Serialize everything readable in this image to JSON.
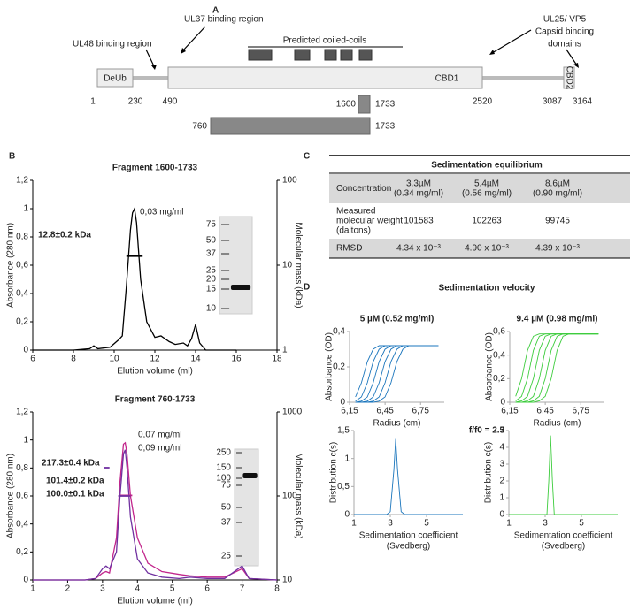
{
  "panel_a": {
    "label": "A",
    "ul48": "UL48 binding region",
    "ul37": "UL37 binding region",
    "coils": "Predicted coiled-coils",
    "ul25": [
      "UL25/ VP5",
      "Capsid binding",
      "domains"
    ],
    "domains": [
      "DeUb",
      "CBD1",
      "CBD2"
    ],
    "positions": [
      1,
      230,
      490,
      2520,
      3087,
      3164
    ],
    "fragments": [
      [
        1600,
        1733
      ],
      [
        760,
        1733
      ]
    ]
  },
  "panel_b": {
    "label": "B"
  },
  "table_c": {
    "label": "C",
    "title": "Sedimentation equilibrium",
    "rows": [
      [
        [
          "Concentration"
        ],
        [
          "3.3µM",
          "(0.34 mg/ml)"
        ],
        [
          "5.4µM",
          "(0.56 mg/ml)"
        ],
        [
          "8.6µM",
          "(0.90 mg/ml)"
        ]
      ],
      [
        [
          "Measured",
          "molecular weight",
          "(daltons)"
        ],
        [
          "101583"
        ],
        [
          "102263"
        ],
        [
          "99745"
        ]
      ],
      [
        [
          "RMSD"
        ],
        [
          "4.34 x 10⁻³"
        ],
        [
          "4.90 x 10⁻³"
        ],
        [
          "4.39 x 10⁻³"
        ]
      ]
    ]
  },
  "panel_d": {
    "label": "D",
    "title": "Sedimentation velocity",
    "subtitle": "f/f0 = 2.3"
  },
  "chart_data": [
    {
      "type": "line",
      "title": "Fragment 1600-1733",
      "x_label": [
        "Elution volume (ml)"
      ],
      "y_label": "Absorbance (280 nm)",
      "y2_label": "Molecular mass (kDa)",
      "xlim": [
        6,
        18
      ],
      "xticks": [
        6,
        8,
        10,
        12,
        14,
        16,
        18
      ],
      "ylim": [
        0,
        1.2
      ],
      "yticks": [
        0,
        {
          "value": 0.2,
          "label": "0,2"
        },
        {
          "value": 0.4,
          "label": "0,4"
        },
        {
          "value": 0.6,
          "label": "0,6"
        },
        {
          "value": 0.8,
          "label": "0,8"
        },
        1,
        {
          "value": 1.2,
          "label": "1,2"
        }
      ],
      "y2lim": [
        1,
        100
      ],
      "y2ticks": [
        1,
        10,
        100
      ],
      "y2_log": true,
      "gel_markers": [
        75,
        50,
        37,
        25,
        20,
        15,
        10
      ],
      "series": [
        {
          "name": "0,03 mg/ml",
          "color": "#000000",
          "x": [
            6,
            8,
            8.8,
            9,
            9.2,
            9.8,
            10.2,
            10.4,
            10.6,
            10.8,
            10.9,
            11,
            11.1,
            11.3,
            11.6,
            12,
            12.3,
            12.7,
            13,
            13.4,
            13.6,
            13.8,
            14,
            14.2,
            14.5,
            16
          ],
          "values": [
            0,
            0,
            0.01,
            0.03,
            0.01,
            0.02,
            0.07,
            0.1,
            0.45,
            0.85,
            0.97,
            1.0,
            0.9,
            0.5,
            0.2,
            0.09,
            0.1,
            0.06,
            0.04,
            0.05,
            0.03,
            0.08,
            0.18,
            0.05,
            0,
            0
          ]
        },
        {
          "name": "12.8±0.2 kDa",
          "color": "#000000",
          "axis": "y2",
          "x": [
            10.6,
            11.4
          ],
          "values": [
            12.8,
            12.8
          ]
        }
      ]
    },
    {
      "type": "line",
      "title": "Fragment 760-1733",
      "x_label": [
        "Elution volume (ml)"
      ],
      "y_label": "Absorbance (280 nm)",
      "y2_label": "Molecular mass (kDa)",
      "xlim": [
        1,
        8
      ],
      "xticks": [
        1,
        2,
        3,
        4,
        5,
        6,
        7,
        8
      ],
      "ylim": [
        0,
        1.2
      ],
      "yticks": [
        0,
        {
          "value": 0.2,
          "label": "0,2"
        },
        {
          "value": 0.4,
          "label": "0,4"
        },
        {
          "value": 0.6,
          "label": "0,6"
        },
        {
          "value": 0.8,
          "label": "0,8"
        },
        1,
        {
          "value": 1.2,
          "label": "1,2"
        }
      ],
      "y2lim": [
        10,
        1000
      ],
      "y2ticks": [
        10,
        100,
        1000
      ],
      "y2_log": true,
      "gel_markers": [
        250,
        150,
        100,
        75,
        50,
        37,
        25
      ],
      "series": [
        {
          "name": "0,07 mg/ml",
          "color": "#c2268c",
          "x": [
            1,
            2.5,
            2.8,
            3,
            3.1,
            3.2,
            3.4,
            3.5,
            3.6,
            3.65,
            3.7,
            3.8,
            4,
            4.3,
            4.7,
            5.2,
            5.5,
            6,
            6.5,
            7,
            7.2,
            8
          ],
          "values": [
            0,
            0,
            0.01,
            0.05,
            0.06,
            0.05,
            0.3,
            0.7,
            0.97,
            0.98,
            0.9,
            0.6,
            0.3,
            0.12,
            0.06,
            0.04,
            0.03,
            0.02,
            0.02,
            0.08,
            0.01,
            0
          ]
        },
        {
          "name": "0,09 mg/ml",
          "color": "#7030a0",
          "x": [
            1,
            2.5,
            2.8,
            3,
            3.1,
            3.2,
            3.4,
            3.5,
            3.6,
            3.65,
            3.7,
            3.8,
            4,
            4.3,
            4.7,
            5.2,
            5.5,
            6,
            6.5,
            7,
            7.2,
            8
          ],
          "values": [
            0,
            0,
            0.01,
            0.08,
            0.1,
            0.08,
            0.2,
            0.6,
            0.9,
            0.93,
            0.8,
            0.45,
            0.15,
            0.05,
            0.02,
            0.01,
            0.02,
            0.01,
            0.01,
            0.1,
            0.01,
            0
          ]
        },
        {
          "name": "101.4±0.2 kDa",
          "color": "#c2268c",
          "axis": "y2",
          "x": [
            3.5,
            3.85
          ],
          "values": [
            101.4,
            101.4
          ]
        },
        {
          "name": "100.0±0.1 kDa",
          "color": "#7030a0",
          "axis": "y2",
          "x": [
            3.45,
            3.8
          ],
          "values": [
            100.0,
            100.0
          ]
        },
        {
          "name": "217.3±0.4 kDa",
          "color": "#7030a0",
          "axis": "y2",
          "x": [
            3.05,
            3.2
          ],
          "values": [
            217.3,
            217.3
          ]
        }
      ]
    },
    {
      "type": "line",
      "title": "5 µM (0.52 mg/ml)",
      "x_label": [
        "Radius (cm)"
      ],
      "y_label": "Absorbance (OD)",
      "xlim": [
        6.15,
        6.95
      ],
      "xticks": [
        {
          "value": 6.15,
          "label": "6,15"
        },
        {
          "value": 6.45,
          "label": "6,45"
        },
        {
          "value": 6.75,
          "label": "6,75"
        }
      ],
      "ylim": [
        0,
        0.4
      ],
      "yticks": [
        0,
        {
          "value": 0.2,
          "label": "0,2"
        },
        {
          "value": 0.4,
          "label": "0,4"
        }
      ],
      "x": [
        6.2,
        6.25,
        6.3,
        6.35,
        6.4,
        6.45,
        6.5,
        6.55,
        6.6,
        6.65,
        6.7,
        6.75,
        6.8,
        6.85,
        6.9
      ],
      "series": [
        {
          "color": "#1a75bc",
          "values": [
            0.03,
            0.11,
            0.23,
            0.3,
            0.32,
            0.32,
            0.32,
            0.32,
            0.32,
            0.32,
            0.32,
            0.32,
            0.32,
            0.32,
            0.32
          ]
        },
        {
          "color": "#1a75bc",
          "values": [
            0.006,
            0.03,
            0.11,
            0.23,
            0.3,
            0.32,
            0.32,
            0.32,
            0.32,
            0.32,
            0.32,
            0.32,
            0.32,
            0.32,
            0.32
          ]
        },
        {
          "color": "#1a75bc",
          "values": [
            0,
            0.006,
            0.03,
            0.11,
            0.23,
            0.3,
            0.32,
            0.32,
            0.32,
            0.32,
            0.32,
            0.32,
            0.32,
            0.32,
            0.32
          ]
        },
        {
          "color": "#1a75bc",
          "values": [
            0,
            0,
            0.006,
            0.03,
            0.11,
            0.23,
            0.3,
            0.32,
            0.32,
            0.32,
            0.32,
            0.32,
            0.32,
            0.32,
            0.32
          ]
        },
        {
          "color": "#1a75bc",
          "values": [
            0,
            0,
            0,
            0.006,
            0.03,
            0.11,
            0.23,
            0.3,
            0.32,
            0.32,
            0.32,
            0.32,
            0.32,
            0.32,
            0.32
          ]
        },
        {
          "color": "#1a75bc",
          "values": [
            0,
            0,
            0,
            0,
            0.006,
            0.03,
            0.11,
            0.23,
            0.3,
            0.32,
            0.32,
            0.32,
            0.32,
            0.32,
            0.32
          ]
        }
      ]
    },
    {
      "type": "line",
      "title": "9.4 µM (0.98 mg/ml)",
      "x_label": [
        "Radius (cm)"
      ],
      "y_label": "Absorbance (OD)",
      "xlim": [
        6.15,
        6.95
      ],
      "xticks": [
        {
          "value": 6.15,
          "label": "6,15"
        },
        {
          "value": 6.45,
          "label": "6,45"
        },
        {
          "value": 6.75,
          "label": "6,75"
        }
      ],
      "ylim": [
        0,
        0.6
      ],
      "yticks": [
        0,
        {
          "value": 0.2,
          "label": "0,2"
        },
        {
          "value": 0.4,
          "label": "0,4"
        },
        {
          "value": 0.6,
          "label": "0,6"
        }
      ],
      "x": [
        6.2,
        6.25,
        6.3,
        6.35,
        6.4,
        6.45,
        6.5,
        6.55,
        6.6,
        6.65,
        6.7,
        6.75,
        6.8,
        6.85,
        6.9
      ],
      "series": [
        {
          "color": "#3ccc3c",
          "values": [
            0.05,
            0.2,
            0.44,
            0.56,
            0.58,
            0.58,
            0.58,
            0.58,
            0.58,
            0.58,
            0.58,
            0.58,
            0.58,
            0.58,
            0.58
          ]
        },
        {
          "color": "#3ccc3c",
          "values": [
            0.011,
            0.05,
            0.2,
            0.44,
            0.56,
            0.58,
            0.58,
            0.58,
            0.58,
            0.58,
            0.58,
            0.58,
            0.58,
            0.58,
            0.58
          ]
        },
        {
          "color": "#3ccc3c",
          "values": [
            0,
            0.011,
            0.05,
            0.2,
            0.44,
            0.56,
            0.58,
            0.58,
            0.58,
            0.58,
            0.58,
            0.58,
            0.58,
            0.58,
            0.58
          ]
        },
        {
          "color": "#3ccc3c",
          "values": [
            0,
            0,
            0.011,
            0.05,
            0.2,
            0.44,
            0.56,
            0.58,
            0.58,
            0.58,
            0.58,
            0.58,
            0.58,
            0.58,
            0.58
          ]
        },
        {
          "color": "#3ccc3c",
          "values": [
            0,
            0,
            0,
            0.011,
            0.05,
            0.2,
            0.44,
            0.56,
            0.58,
            0.58,
            0.58,
            0.58,
            0.58,
            0.58,
            0.58
          ]
        },
        {
          "color": "#3ccc3c",
          "values": [
            0,
            0,
            0,
            0,
            0.011,
            0.05,
            0.2,
            0.44,
            0.56,
            0.58,
            0.58,
            0.58,
            0.58,
            0.58,
            0.58
          ]
        }
      ]
    },
    {
      "type": "line",
      "x_label": [
        "Sedimentation coefficient",
        "(Svedberg)"
      ],
      "y_label": "Distribution c(s)",
      "xlim": [
        1,
        7
      ],
      "xticks": [
        1,
        3,
        5
      ],
      "ylim": [
        0,
        1.5
      ],
      "yticks": [
        0,
        {
          "value": 0.5,
          "label": "0,5"
        },
        1,
        {
          "value": 1.5,
          "label": "1,5"
        }
      ],
      "series": [
        {
          "color": "#1a75bc",
          "x": [
            1,
            2,
            2.8,
            3.0,
            3.2,
            3.3,
            3.4,
            3.6,
            3.8,
            5,
            7
          ],
          "values": [
            0,
            0,
            0,
            0.05,
            0.8,
            1.35,
            0.8,
            0.05,
            0,
            0,
            0
          ]
        }
      ]
    },
    {
      "type": "line",
      "x_label": [
        "Sedimentation coefficient",
        "(Svedberg)"
      ],
      "y_label": "Distribution c(s)",
      "xlim": [
        1,
        7
      ],
      "xticks": [
        1,
        3,
        5
      ],
      "ylim": [
        0,
        5
      ],
      "yticks": [
        0,
        1,
        2,
        3,
        4,
        5
      ],
      "series": [
        {
          "color": "#3ccc3c",
          "x": [
            1,
            2,
            3,
            3.1,
            3.2,
            3.3,
            3.4,
            3.5,
            3.6,
            5,
            7
          ],
          "values": [
            0,
            0,
            0,
            0,
            2,
            4.7,
            2,
            0,
            0,
            0,
            0
          ]
        }
      ]
    }
  ]
}
